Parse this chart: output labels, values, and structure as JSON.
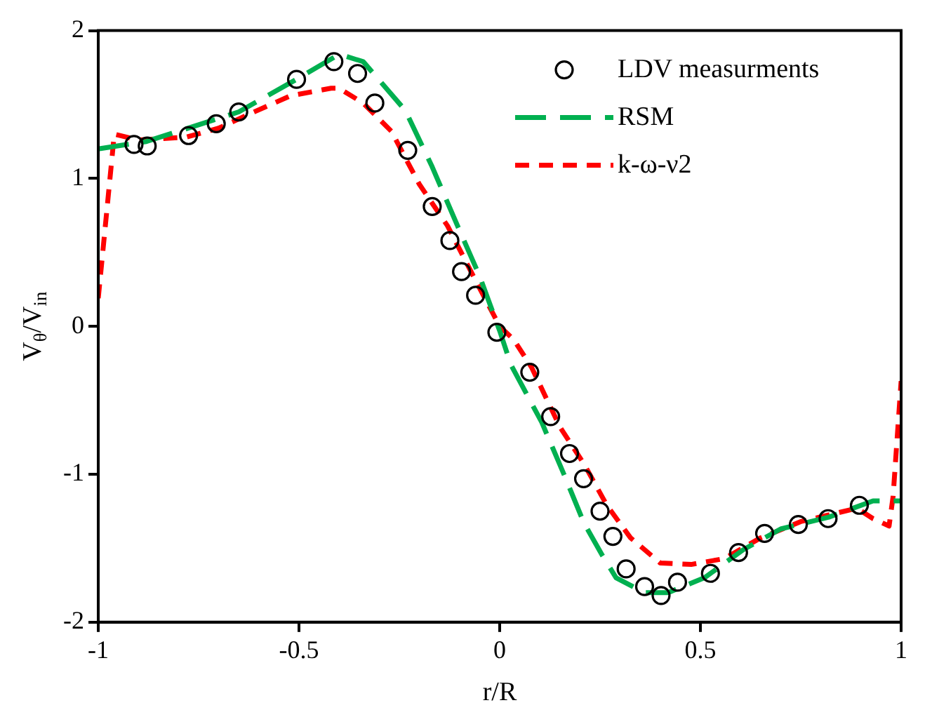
{
  "chart_data": {
    "type": "line",
    "xlabel": "r/R",
    "ylabel": "V$_{θ}$/V$_{in}$",
    "xlim": [
      -1,
      1
    ],
    "xticks": [
      -1,
      -0.5,
      0,
      0.5,
      1
    ],
    "ylim": [
      -2,
      2
    ],
    "yticks": [
      -2,
      -1,
      0,
      1,
      2
    ],
    "grid": false,
    "legend": "top right",
    "series": [
      {
        "name": "LDV measurments",
        "type": "scatter",
        "color": "#000000",
        "marker": "circle",
        "x": [
          -0.911,
          -0.878,
          -0.775,
          -0.706,
          -0.65,
          -0.506,
          -0.413,
          -0.354,
          -0.311,
          -0.229,
          -0.168,
          -0.124,
          -0.095,
          -0.06,
          -0.007,
          0.075,
          0.127,
          0.174,
          0.209,
          0.25,
          0.282,
          0.315,
          0.361,
          0.402,
          0.443,
          0.525,
          0.595,
          0.66,
          0.744,
          0.818,
          0.896
        ],
        "values": [
          1.23,
          1.22,
          1.29,
          1.37,
          1.45,
          1.67,
          1.79,
          1.71,
          1.51,
          1.19,
          0.81,
          0.58,
          0.37,
          0.21,
          -0.04,
          -0.31,
          -0.61,
          -0.86,
          -1.03,
          -1.25,
          -1.42,
          -1.64,
          -1.76,
          -1.82,
          -1.73,
          -1.67,
          -1.53,
          -1.4,
          -1.34,
          -1.3,
          -1.21
        ]
      },
      {
        "name": "RSM",
        "type": "line",
        "color": "#00b050",
        "marker": "none",
        "line_style": "dashed",
        "x": [
          -1,
          -0.88,
          -0.65,
          -0.5,
          -0.4,
          -0.34,
          -0.235,
          -0.17,
          -0.105,
          -0.05,
          0,
          0.028,
          0.105,
          0.16,
          0.21,
          0.256,
          0.29,
          0.36,
          0.42,
          0.51,
          0.607,
          0.7,
          0.82,
          0.93,
          1
        ],
        "values": [
          1.2,
          1.25,
          1.45,
          1.68,
          1.84,
          1.79,
          1.46,
          1.09,
          0.68,
          0.34,
          -0.03,
          -0.26,
          -0.65,
          -1.0,
          -1.33,
          -1.55,
          -1.7,
          -1.8,
          -1.8,
          -1.7,
          -1.51,
          -1.37,
          -1.29,
          -1.18,
          -1.18
        ]
      },
      {
        "name": "k-ω-ν2",
        "type": "line",
        "color": "#ff0000",
        "marker": "none",
        "line_style": "dashed",
        "x": [
          -1,
          -0.96,
          -0.9,
          -0.78,
          -0.7,
          -0.62,
          -0.52,
          -0.42,
          -0.4,
          -0.34,
          -0.27,
          -0.2,
          -0.13,
          -0.06,
          0,
          0.035,
          0.08,
          0.15,
          0.21,
          0.267,
          0.326,
          0.4,
          0.477,
          0.56,
          0.65,
          0.75,
          0.89,
          0.93,
          0.97,
          0.98,
          1
        ],
        "values": [
          0.19,
          1.3,
          1.26,
          1.28,
          1.34,
          1.44,
          1.56,
          1.61,
          1.61,
          1.51,
          1.32,
          0.96,
          0.68,
          0.31,
          0,
          -0.09,
          -0.28,
          -0.68,
          -0.93,
          -1.21,
          -1.43,
          -1.6,
          -1.61,
          -1.57,
          -1.43,
          -1.32,
          -1.23,
          -1.3,
          -1.35,
          -1.15,
          -0.37
        ]
      }
    ]
  }
}
